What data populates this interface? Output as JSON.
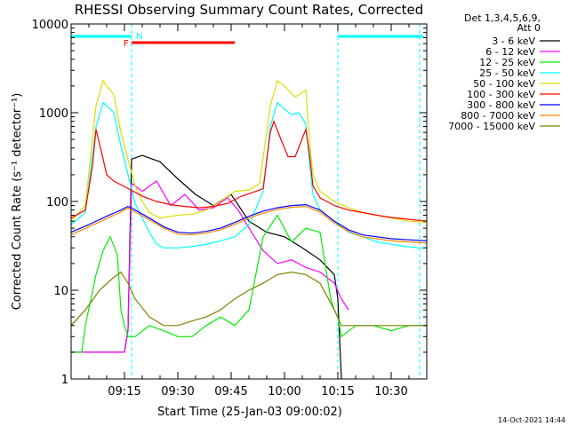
{
  "chart_data": {
    "type": "line",
    "title": "RHESSI Observing Summary Count Rates, Corrected",
    "xlabel": "Start Time (25-Jan-03 09:00:02)",
    "ylabel": "Corrected Count Rate (s⁻¹ detector⁻¹)",
    "y_scale": "log",
    "xlim_minutes": [
      0,
      100
    ],
    "ylim": [
      1,
      10000
    ],
    "x_ticks": [
      {
        "minute": 15,
        "label": "09:15"
      },
      {
        "minute": 30,
        "label": "09:30"
      },
      {
        "minute": 45,
        "label": "09:45"
      },
      {
        "minute": 60,
        "label": "10:00"
      },
      {
        "minute": 75,
        "label": "10:15"
      },
      {
        "minute": 90,
        "label": "10:30"
      }
    ],
    "y_ticks": [
      {
        "value": 1,
        "label": "1"
      },
      {
        "value": 10,
        "label": "10"
      },
      {
        "value": 100,
        "label": "100"
      },
      {
        "value": 1000,
        "label": "1000"
      },
      {
        "value": 10000,
        "label": "10000"
      }
    ],
    "legend_header": [
      "Det 1,3,4,5,6,9,",
      "Att 0"
    ],
    "legend_position": "right",
    "series": [
      {
        "name": "3 - 6 keV",
        "color": "#000000",
        "points": [
          [
            0,
            2
          ],
          [
            15,
            2
          ],
          [
            16,
            3.6
          ],
          [
            17,
            300
          ],
          [
            20,
            330
          ],
          [
            25,
            280
          ],
          [
            30,
            180
          ],
          [
            35,
            120
          ],
          [
            40,
            90
          ],
          [
            45,
            120
          ],
          [
            50,
            60
          ],
          [
            55,
            45
          ],
          [
            60,
            40
          ],
          [
            65,
            30
          ],
          [
            70,
            22
          ],
          [
            74,
            15
          ],
          [
            75,
            8
          ],
          [
            76,
            1
          ]
        ]
      },
      {
        "name": "6 - 12 keV",
        "color": "#ff00ff",
        "points": [
          [
            0,
            2
          ],
          [
            15,
            2
          ],
          [
            16,
            3.6
          ],
          [
            17,
            160
          ],
          [
            20,
            130
          ],
          [
            24,
            170
          ],
          [
            28,
            90
          ],
          [
            32,
            120
          ],
          [
            36,
            80
          ],
          [
            40,
            85
          ],
          [
            44,
            110
          ],
          [
            47,
            80
          ],
          [
            50,
            50
          ],
          [
            54,
            28
          ],
          [
            58,
            20
          ],
          [
            62,
            22
          ],
          [
            66,
            18
          ],
          [
            70,
            16
          ],
          [
            74,
            12
          ],
          [
            76,
            8
          ],
          [
            78,
            6
          ]
        ]
      },
      {
        "name": "12 - 25 keV",
        "color": "#00ee00",
        "points": [
          [
            0,
            2
          ],
          [
            3,
            2
          ],
          [
            4,
            4
          ],
          [
            7,
            15
          ],
          [
            9,
            28
          ],
          [
            11,
            40
          ],
          [
            13,
            25
          ],
          [
            14,
            6
          ],
          [
            15,
            4
          ],
          [
            16,
            3
          ],
          [
            18,
            3
          ],
          [
            22,
            4
          ],
          [
            26,
            3.5
          ],
          [
            30,
            3
          ],
          [
            34,
            3
          ],
          [
            38,
            4
          ],
          [
            42,
            5
          ],
          [
            46,
            4
          ],
          [
            50,
            6
          ],
          [
            54,
            40
          ],
          [
            58,
            70
          ],
          [
            62,
            35
          ],
          [
            66,
            50
          ],
          [
            70,
            45
          ],
          [
            73,
            8
          ],
          [
            74,
            6
          ],
          [
            75,
            5
          ],
          [
            76,
            3
          ],
          [
            80,
            4
          ],
          [
            85,
            4
          ],
          [
            90,
            3.5
          ],
          [
            95,
            4
          ],
          [
            100,
            4
          ]
        ]
      },
      {
        "name": "25 - 50 keV",
        "color": "#00ffff",
        "points": [
          [
            0,
            55
          ],
          [
            4,
            75
          ],
          [
            7,
            700
          ],
          [
            9,
            1300
          ],
          [
            10,
            1200
          ],
          [
            12,
            1000
          ],
          [
            14,
            420
          ],
          [
            16,
            200
          ],
          [
            18,
            95
          ],
          [
            20,
            65
          ],
          [
            22,
            45
          ],
          [
            24,
            33
          ],
          [
            26,
            30
          ],
          [
            30,
            30
          ],
          [
            34,
            31
          ],
          [
            38,
            33
          ],
          [
            42,
            36
          ],
          [
            46,
            40
          ],
          [
            50,
            55
          ],
          [
            54,
            130
          ],
          [
            56,
            700
          ],
          [
            58,
            1300
          ],
          [
            60,
            1100
          ],
          [
            62,
            950
          ],
          [
            64,
            1000
          ],
          [
            66,
            750
          ],
          [
            67,
            280
          ],
          [
            68,
            120
          ],
          [
            70,
            80
          ],
          [
            74,
            60
          ],
          [
            78,
            45
          ],
          [
            82,
            40
          ],
          [
            86,
            35
          ],
          [
            90,
            33
          ],
          [
            94,
            31
          ],
          [
            98,
            30
          ],
          [
            100,
            30
          ]
        ]
      },
      {
        "name": "50 - 100 keV",
        "color": "#dddd00",
        "points": [
          [
            0,
            60
          ],
          [
            4,
            90
          ],
          [
            7,
            1200
          ],
          [
            9,
            2300
          ],
          [
            10,
            2000
          ],
          [
            12,
            1600
          ],
          [
            14,
            600
          ],
          [
            16,
            300
          ],
          [
            18,
            150
          ],
          [
            20,
            100
          ],
          [
            22,
            75
          ],
          [
            25,
            65
          ],
          [
            30,
            70
          ],
          [
            34,
            72
          ],
          [
            38,
            80
          ],
          [
            42,
            100
          ],
          [
            46,
            130
          ],
          [
            50,
            135
          ],
          [
            53,
            160
          ],
          [
            56,
            1200
          ],
          [
            58,
            2300
          ],
          [
            60,
            2000
          ],
          [
            63,
            1500
          ],
          [
            66,
            1800
          ],
          [
            67,
            500
          ],
          [
            68,
            200
          ],
          [
            70,
            130
          ],
          [
            74,
            100
          ],
          [
            78,
            85
          ],
          [
            82,
            75
          ],
          [
            86,
            70
          ],
          [
            90,
            65
          ],
          [
            95,
            60
          ],
          [
            100,
            58
          ]
        ]
      },
      {
        "name": "100 - 300 keV",
        "color": "#ff0000",
        "points": [
          [
            0,
            65
          ],
          [
            4,
            80
          ],
          [
            6,
            250
          ],
          [
            7,
            650
          ],
          [
            9,
            300
          ],
          [
            10,
            200
          ],
          [
            12,
            170
          ],
          [
            16,
            140
          ],
          [
            20,
            115
          ],
          [
            24,
            100
          ],
          [
            28,
            92
          ],
          [
            32,
            88
          ],
          [
            36,
            85
          ],
          [
            40,
            88
          ],
          [
            44,
            95
          ],
          [
            48,
            115
          ],
          [
            52,
            130
          ],
          [
            54,
            140
          ],
          [
            56,
            600
          ],
          [
            57,
            800
          ],
          [
            59,
            500
          ],
          [
            61,
            320
          ],
          [
            63,
            320
          ],
          [
            66,
            650
          ],
          [
            67,
            350
          ],
          [
            68,
            150
          ],
          [
            70,
            110
          ],
          [
            74,
            90
          ],
          [
            78,
            80
          ],
          [
            82,
            75
          ],
          [
            86,
            70
          ],
          [
            90,
            66
          ],
          [
            95,
            63
          ],
          [
            100,
            60
          ]
        ]
      },
      {
        "name": "300 - 800 keV",
        "color": "#0000ff",
        "points": [
          [
            0,
            45
          ],
          [
            5,
            55
          ],
          [
            10,
            68
          ],
          [
            14,
            80
          ],
          [
            16,
            88
          ],
          [
            18,
            80
          ],
          [
            22,
            65
          ],
          [
            26,
            52
          ],
          [
            30,
            45
          ],
          [
            34,
            44
          ],
          [
            38,
            46
          ],
          [
            42,
            50
          ],
          [
            46,
            58
          ],
          [
            50,
            68
          ],
          [
            54,
            78
          ],
          [
            58,
            85
          ],
          [
            62,
            90
          ],
          [
            66,
            92
          ],
          [
            70,
            80
          ],
          [
            74,
            60
          ],
          [
            78,
            48
          ],
          [
            82,
            42
          ],
          [
            86,
            40
          ],
          [
            90,
            38
          ],
          [
            95,
            37
          ],
          [
            100,
            36
          ]
        ]
      },
      {
        "name": "800 - 7000 keV",
        "color": "#ff8800",
        "points": [
          [
            0,
            42
          ],
          [
            5,
            52
          ],
          [
            10,
            64
          ],
          [
            14,
            76
          ],
          [
            16,
            84
          ],
          [
            18,
            76
          ],
          [
            22,
            62
          ],
          [
            26,
            50
          ],
          [
            30,
            43
          ],
          [
            34,
            42
          ],
          [
            38,
            44
          ],
          [
            42,
            48
          ],
          [
            46,
            55
          ],
          [
            50,
            65
          ],
          [
            54,
            74
          ],
          [
            58,
            81
          ],
          [
            62,
            86
          ],
          [
            66,
            88
          ],
          [
            70,
            76
          ],
          [
            74,
            57
          ],
          [
            78,
            46
          ],
          [
            82,
            40
          ],
          [
            86,
            38
          ],
          [
            90,
            36
          ],
          [
            95,
            35
          ],
          [
            100,
            34
          ]
        ]
      },
      {
        "name": "7000 - 15000 keV",
        "color": "#808000",
        "points": [
          [
            0,
            4
          ],
          [
            4,
            6
          ],
          [
            8,
            10
          ],
          [
            12,
            14
          ],
          [
            14,
            16
          ],
          [
            16,
            12
          ],
          [
            18,
            8
          ],
          [
            22,
            5
          ],
          [
            26,
            4
          ],
          [
            30,
            4
          ],
          [
            34,
            4.5
          ],
          [
            38,
            5
          ],
          [
            42,
            6
          ],
          [
            46,
            8
          ],
          [
            50,
            10
          ],
          [
            54,
            12
          ],
          [
            58,
            15
          ],
          [
            62,
            16
          ],
          [
            66,
            15
          ],
          [
            70,
            12
          ],
          [
            74,
            6
          ],
          [
            76,
            4
          ],
          [
            80,
            4
          ],
          [
            85,
            4
          ],
          [
            90,
            4
          ],
          [
            95,
            4
          ],
          [
            100,
            4
          ]
        ]
      }
    ],
    "vertical_dashed_lines_minutes": [
      17,
      75,
      98
    ],
    "flags": [
      {
        "label": "N",
        "color": "#00ffff",
        "segments": [
          [
            0,
            17
          ],
          [
            75,
            99
          ]
        ]
      },
      {
        "label": "F",
        "color": "#ff0000",
        "segments": [
          [
            17,
            46
          ]
        ]
      }
    ],
    "footer_date": "14-Oct-2021 14:44"
  }
}
